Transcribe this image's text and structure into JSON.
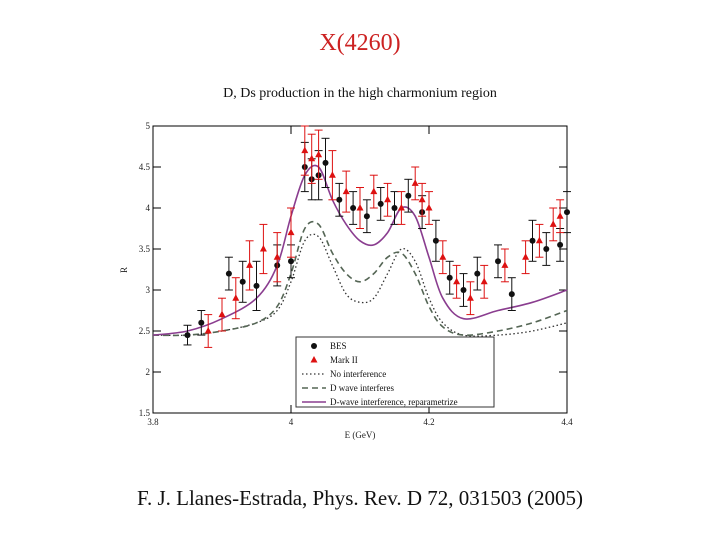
{
  "slide": {
    "title": "X(4260)",
    "citation": "F. J. Llanes-Estrada,  Phys. Rev. D 72, 031503 (2005)"
  },
  "chart_data": {
    "type": "line",
    "title": "D, Ds production in the high charmonium region",
    "xlabel": "E (GeV)",
    "ylabel": "R",
    "xlim": [
      3.8,
      4.4
    ],
    "ylim": [
      1.5,
      5.0
    ],
    "xticks": [
      "3.8",
      "4",
      "4.2",
      "4.4"
    ],
    "yticks": [
      "1.5",
      "2",
      "2.5",
      "3",
      "3.5",
      "4",
      "4.5",
      "5"
    ],
    "legend_position": "bottom-right",
    "legend": [
      {
        "label": "BES",
        "style": "marker-circle"
      },
      {
        "label": "Mark II",
        "style": "marker-triangle"
      },
      {
        "label": "No interference",
        "style": "dotted"
      },
      {
        "label": "D wave interferes",
        "style": "dashed"
      },
      {
        "label": "D-wave interference, reparametrize",
        "style": "solid"
      }
    ],
    "colors": {
      "bes": "#111111",
      "mark2": "#dd1111",
      "no_interference": "#333333",
      "d_wave": "#556655",
      "reparam": "#8a3d8f"
    },
    "series": [
      {
        "name": "BES",
        "type": "scatter",
        "points": [
          {
            "x": 3.85,
            "y": 2.45,
            "err": 0.12
          },
          {
            "x": 3.87,
            "y": 2.6,
            "err": 0.15
          },
          {
            "x": 3.91,
            "y": 3.2,
            "err": 0.2
          },
          {
            "x": 3.93,
            "y": 3.1,
            "err": 0.25
          },
          {
            "x": 3.95,
            "y": 3.05,
            "err": 0.3
          },
          {
            "x": 3.98,
            "y": 3.3,
            "err": 0.25
          },
          {
            "x": 4.0,
            "y": 3.35,
            "err": 0.2
          },
          {
            "x": 4.02,
            "y": 4.5,
            "err": 0.3
          },
          {
            "x": 4.03,
            "y": 4.35,
            "err": 0.25
          },
          {
            "x": 4.04,
            "y": 4.4,
            "err": 0.3
          },
          {
            "x": 4.05,
            "y": 4.55,
            "err": 0.3
          },
          {
            "x": 4.07,
            "y": 4.1,
            "err": 0.2
          },
          {
            "x": 4.09,
            "y": 4.0,
            "err": 0.2
          },
          {
            "x": 4.11,
            "y": 3.9,
            "err": 0.2
          },
          {
            "x": 4.13,
            "y": 4.05,
            "err": 0.2
          },
          {
            "x": 4.15,
            "y": 4.0,
            "err": 0.2
          },
          {
            "x": 4.17,
            "y": 4.15,
            "err": 0.2
          },
          {
            "x": 4.19,
            "y": 3.95,
            "err": 0.2
          },
          {
            "x": 4.21,
            "y": 3.6,
            "err": 0.25
          },
          {
            "x": 4.23,
            "y": 3.15,
            "err": 0.2
          },
          {
            "x": 4.25,
            "y": 3.0,
            "err": 0.2
          },
          {
            "x": 4.27,
            "y": 3.2,
            "err": 0.2
          },
          {
            "x": 4.3,
            "y": 3.35,
            "err": 0.2
          },
          {
            "x": 4.32,
            "y": 2.95,
            "err": 0.2
          },
          {
            "x": 4.35,
            "y": 3.6,
            "err": 0.25
          },
          {
            "x": 4.37,
            "y": 3.5,
            "err": 0.2
          },
          {
            "x": 4.39,
            "y": 3.55,
            "err": 0.2
          },
          {
            "x": 4.4,
            "y": 3.95,
            "err": 0.25
          }
        ]
      },
      {
        "name": "Mark II",
        "type": "scatter",
        "points": [
          {
            "x": 3.88,
            "y": 2.5,
            "err": 0.2
          },
          {
            "x": 3.9,
            "y": 2.7,
            "err": 0.2
          },
          {
            "x": 3.92,
            "y": 2.9,
            "err": 0.25
          },
          {
            "x": 3.94,
            "y": 3.3,
            "err": 0.3
          },
          {
            "x": 3.96,
            "y": 3.5,
            "err": 0.3
          },
          {
            "x": 3.98,
            "y": 3.4,
            "err": 0.3
          },
          {
            "x": 4.0,
            "y": 3.7,
            "err": 0.3
          },
          {
            "x": 4.02,
            "y": 4.7,
            "err": 0.3
          },
          {
            "x": 4.03,
            "y": 4.6,
            "err": 0.3
          },
          {
            "x": 4.04,
            "y": 4.65,
            "err": 0.3
          },
          {
            "x": 4.06,
            "y": 4.4,
            "err": 0.3
          },
          {
            "x": 4.08,
            "y": 4.2,
            "err": 0.25
          },
          {
            "x": 4.1,
            "y": 4.0,
            "err": 0.25
          },
          {
            "x": 4.12,
            "y": 4.2,
            "err": 0.2
          },
          {
            "x": 4.14,
            "y": 4.1,
            "err": 0.2
          },
          {
            "x": 4.16,
            "y": 4.0,
            "err": 0.2
          },
          {
            "x": 4.18,
            "y": 4.3,
            "err": 0.2
          },
          {
            "x": 4.19,
            "y": 4.1,
            "err": 0.2
          },
          {
            "x": 4.2,
            "y": 4.0,
            "err": 0.2
          },
          {
            "x": 4.22,
            "y": 3.4,
            "err": 0.2
          },
          {
            "x": 4.24,
            "y": 3.1,
            "err": 0.2
          },
          {
            "x": 4.26,
            "y": 2.9,
            "err": 0.2
          },
          {
            "x": 4.28,
            "y": 3.1,
            "err": 0.2
          },
          {
            "x": 4.31,
            "y": 3.3,
            "err": 0.2
          },
          {
            "x": 4.34,
            "y": 3.4,
            "err": 0.2
          },
          {
            "x": 4.36,
            "y": 3.6,
            "err": 0.2
          },
          {
            "x": 4.38,
            "y": 3.8,
            "err": 0.2
          },
          {
            "x": 4.39,
            "y": 3.9,
            "err": 0.2
          }
        ]
      },
      {
        "name": "No interference",
        "type": "line",
        "x": [
          3.8,
          3.85,
          3.9,
          3.95,
          3.98,
          4.0,
          4.02,
          4.04,
          4.06,
          4.08,
          4.1,
          4.12,
          4.14,
          4.16,
          4.18,
          4.2,
          4.22,
          4.25,
          4.3,
          4.35,
          4.4
        ],
        "y": [
          2.45,
          2.45,
          2.5,
          2.6,
          2.75,
          3.1,
          3.6,
          3.65,
          3.3,
          2.95,
          2.85,
          2.9,
          3.2,
          3.5,
          3.35,
          2.9,
          2.6,
          2.45,
          2.45,
          2.5,
          2.6
        ]
      },
      {
        "name": "D wave interferes",
        "type": "line",
        "x": [
          3.8,
          3.85,
          3.9,
          3.95,
          3.98,
          4.0,
          4.02,
          4.04,
          4.06,
          4.08,
          4.1,
          4.12,
          4.14,
          4.16,
          4.18,
          4.2,
          4.22,
          4.25,
          4.3,
          4.35,
          4.4
        ],
        "y": [
          2.45,
          2.45,
          2.5,
          2.6,
          2.8,
          3.2,
          3.75,
          3.8,
          3.45,
          3.2,
          3.1,
          3.2,
          3.4,
          3.45,
          3.2,
          2.8,
          2.55,
          2.45,
          2.5,
          2.6,
          2.75
        ]
      },
      {
        "name": "D-wave interference, reparametrize",
        "type": "line",
        "x": [
          3.8,
          3.85,
          3.9,
          3.95,
          3.98,
          4.0,
          4.02,
          4.04,
          4.06,
          4.08,
          4.1,
          4.12,
          4.14,
          4.16,
          4.18,
          4.2,
          4.22,
          4.25,
          4.3,
          4.35,
          4.4
        ],
        "y": [
          2.45,
          2.5,
          2.65,
          2.9,
          3.3,
          3.9,
          4.4,
          4.5,
          4.1,
          3.8,
          3.6,
          3.55,
          3.7,
          4.0,
          3.9,
          3.4,
          2.9,
          2.65,
          2.75,
          2.85,
          3.0
        ]
      }
    ]
  }
}
